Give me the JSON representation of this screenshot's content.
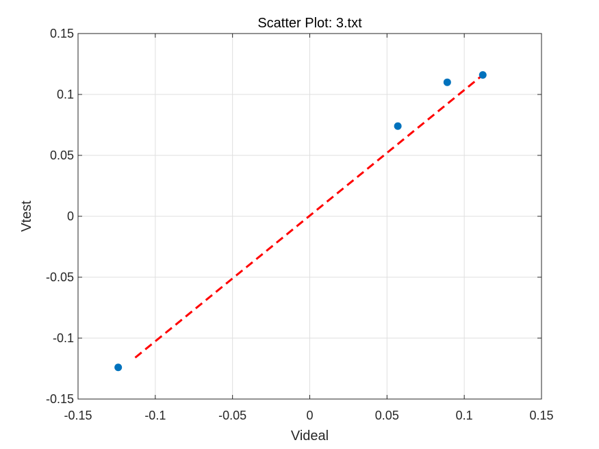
{
  "chart_data": {
    "type": "scatter",
    "title": "Scatter Plot: 3.txt",
    "xlabel": "Videal",
    "ylabel": "Vtest",
    "xlim": [
      -0.15,
      0.15
    ],
    "ylim": [
      -0.15,
      0.15
    ],
    "xticks": [
      -0.15,
      -0.1,
      -0.05,
      0,
      0.05,
      0.1,
      0.15
    ],
    "yticks": [
      -0.15,
      -0.1,
      -0.05,
      0,
      0.05,
      0.1,
      0.15
    ],
    "xtick_labels": [
      "-0.15",
      "-0.1",
      "-0.05",
      "0",
      "0.05",
      "0.1",
      "0.15"
    ],
    "ytick_labels": [
      "-0.15",
      "-0.1",
      "-0.05",
      "0",
      "0.05",
      "0.1",
      "0.15"
    ],
    "grid": true,
    "series": [
      {
        "kind": "scatter",
        "color": "#0072BD",
        "points": [
          {
            "x": -0.124,
            "y": -0.124
          },
          {
            "x": 0.057,
            "y": 0.074
          },
          {
            "x": 0.089,
            "y": 0.11
          },
          {
            "x": 0.112,
            "y": 0.116
          }
        ]
      },
      {
        "kind": "line",
        "style": "dashed",
        "color": "#FF0000",
        "points": [
          {
            "x": -0.113,
            "y": -0.116
          },
          {
            "x": 0.112,
            "y": 0.116
          }
        ]
      }
    ]
  }
}
